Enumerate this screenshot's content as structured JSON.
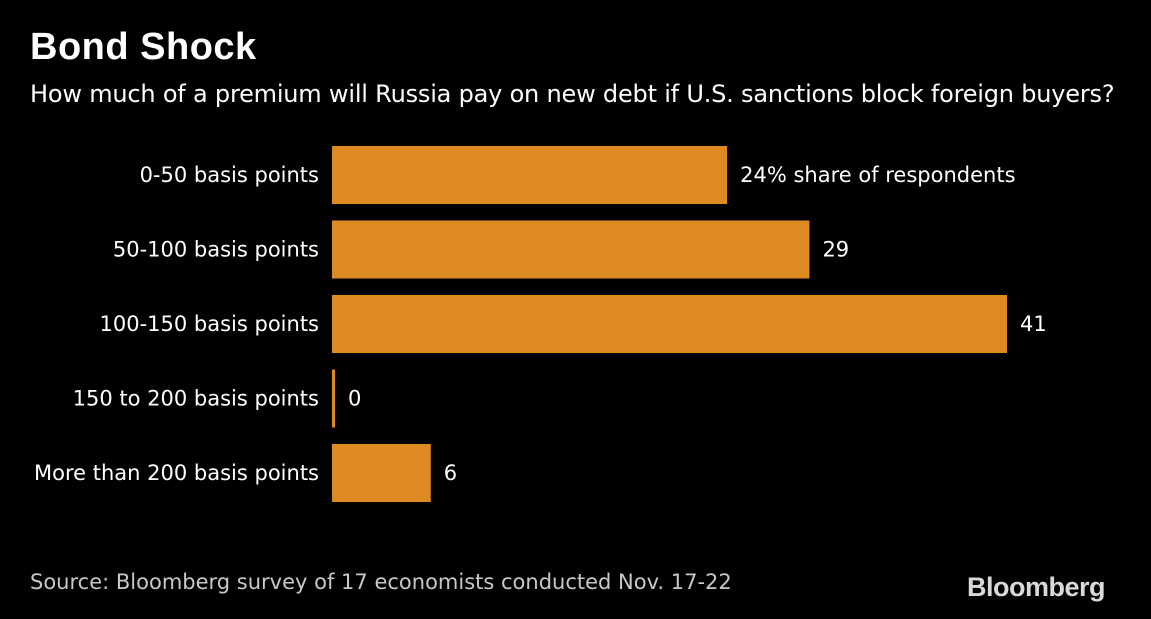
{
  "header": {
    "title": "Bond Shock",
    "subtitle": "How much of a premium will Russia pay on new debt if U.S. sanctions block foreign buyers?"
  },
  "footer": {
    "source": "Source: Bloomberg survey of 17 economists conducted Nov. 17-22",
    "brand": "Bloomberg"
  },
  "chart_data": {
    "type": "bar",
    "orientation": "horizontal",
    "categories": [
      "0-50 basis points",
      "50-100 basis points",
      "100-150 basis points",
      "150 to 200 basis points",
      "More than 200 basis points"
    ],
    "values": [
      24,
      29,
      41,
      0,
      6
    ],
    "data_labels": [
      "24% share of respondents",
      "29",
      "41",
      "0",
      "6"
    ],
    "xlim": [
      0,
      41
    ],
    "grid": false,
    "legend": "none",
    "colors": {
      "bar": "#DE8A23",
      "background": "#000000",
      "text": "#FFFFFF"
    }
  }
}
